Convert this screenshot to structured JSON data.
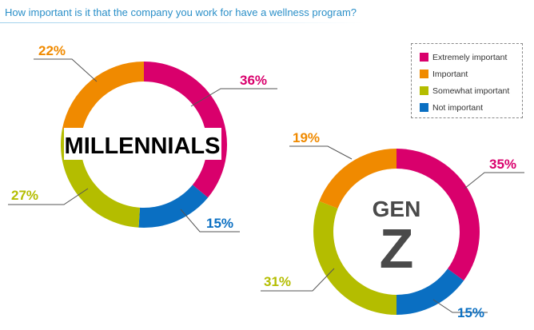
{
  "title": "How important is it that the company you work for have a wellness program?",
  "colors": {
    "extremely": "#d9006c",
    "important": "#f08a00",
    "somewhat": "#b4bd00",
    "not": "#0a6fc2",
    "leader": "#555555"
  },
  "legend": [
    {
      "label": "Extremely important",
      "color": "#d9006c"
    },
    {
      "label": "Important",
      "color": "#f08a00"
    },
    {
      "label": "Somewhat important",
      "color": "#b4bd00"
    },
    {
      "label": "Not important",
      "color": "#0a6fc2"
    }
  ],
  "chart_data": [
    {
      "type": "pie",
      "donut": true,
      "center_label": "MILLENNIALS",
      "categories": [
        "Extremely important",
        "Not important",
        "Somewhat important",
        "Important"
      ],
      "values": [
        36,
        15,
        27,
        22
      ],
      "labels": [
        "36%",
        "15%",
        "27%",
        "22%"
      ]
    },
    {
      "type": "pie",
      "donut": true,
      "center_label_lines": [
        "GEN",
        "Z"
      ],
      "categories": [
        "Extremely important",
        "Not important",
        "Somewhat important",
        "Important"
      ],
      "values": [
        35,
        15,
        31,
        19
      ],
      "labels": [
        "35%",
        "15%",
        "31%",
        "19%"
      ]
    }
  ]
}
